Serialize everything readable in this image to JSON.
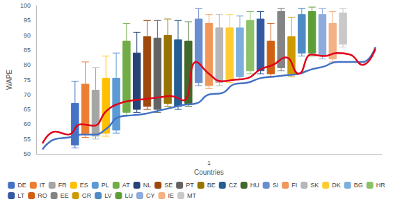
{
  "chart_data": {
    "type": "boxplot",
    "x_label": "Countries",
    "y_label": "WAPE",
    "categories": [
      "1"
    ],
    "ylim": [
      50,
      100
    ],
    "yticks": [
      50,
      55,
      60,
      65,
      70,
      75,
      80,
      85,
      90,
      95,
      100
    ],
    "grid": false,
    "legend": "bottom",
    "series": [
      {
        "name": "DE",
        "color": "#4472c4",
        "values": [
          [
            52,
            53,
            59,
            67,
            74.5
          ]
        ]
      },
      {
        "name": "IT",
        "color": "#ed7d31",
        "values": [
          [
            55.5,
            56.5,
            64,
            73.5,
            81
          ]
        ]
      },
      {
        "name": "FR",
        "color": "#a5a5a5",
        "values": [
          [
            55,
            56,
            63,
            71.5,
            79
          ]
        ]
      },
      {
        "name": "ES",
        "color": "#ffc000",
        "values": [
          [
            56,
            57,
            66,
            75.5,
            83
          ]
        ]
      },
      {
        "name": "PL",
        "color": "#5b9bd5",
        "values": [
          [
            57,
            58,
            66,
            75.5,
            84
          ]
        ]
      },
      {
        "name": "AT",
        "color": "#70ad47",
        "values": [
          [
            63,
            64,
            76,
            88,
            94
          ]
        ]
      },
      {
        "name": "NL",
        "color": "#264478",
        "values": [
          [
            64,
            65,
            74,
            84,
            91
          ]
        ]
      },
      {
        "name": "SE",
        "color": "#9e480e",
        "values": [
          [
            65,
            66,
            78,
            89.5,
            95
          ]
        ]
      },
      {
        "name": "PT",
        "color": "#636363",
        "values": [
          [
            64,
            65,
            77,
            89,
            95
          ]
        ]
      },
      {
        "name": "BE",
        "color": "#997300",
        "values": [
          [
            66,
            67,
            79,
            90,
            95.5
          ]
        ]
      },
      {
        "name": "CZ",
        "color": "#255e91",
        "values": [
          [
            65,
            66,
            78,
            88.5,
            95
          ]
        ]
      },
      {
        "name": "HU",
        "color": "#43682b",
        "values": [
          [
            66,
            67,
            78,
            88,
            94.5
          ]
        ]
      },
      {
        "name": "SI",
        "color": "#698ed0",
        "values": [
          [
            73,
            74,
            85,
            95.5,
            99
          ]
        ]
      },
      {
        "name": "FI",
        "color": "#f1975a",
        "values": [
          [
            72,
            73,
            84,
            94,
            97
          ]
        ]
      },
      {
        "name": "SK",
        "color": "#b7b7b7",
        "values": [
          [
            73,
            74,
            84,
            92.5,
            97
          ]
        ]
      },
      {
        "name": "DK",
        "color": "#ffcd33",
        "values": [
          [
            74,
            75,
            84,
            92.5,
            97
          ]
        ]
      },
      {
        "name": "BG",
        "color": "#7cafdd",
        "values": [
          [
            75,
            76,
            85,
            92.5,
            96.5
          ]
        ]
      },
      {
        "name": "HR",
        "color": "#8cc168",
        "values": [
          [
            77,
            78,
            87,
            95,
            98
          ]
        ]
      },
      {
        "name": "LT",
        "color": "#335aa1",
        "values": [
          [
            77,
            78,
            87,
            95.5,
            98
          ]
        ]
      },
      {
        "name": "RO",
        "color": "#d26012",
        "values": [
          [
            76,
            77,
            82,
            88,
            94
          ]
        ]
      },
      {
        "name": "EE",
        "color": "#848484",
        "values": [
          [
            78,
            79,
            89,
            98,
            99
          ]
        ]
      },
      {
        "name": "GR",
        "color": "#cc9a00",
        "values": [
          [
            76,
            77,
            83,
            89.5,
            96
          ]
        ]
      },
      {
        "name": "LV",
        "color": "#4e8ac5",
        "values": [
          [
            83,
            84,
            91,
            97,
            99
          ]
        ]
      },
      {
        "name": "LU",
        "color": "#5e9e39",
        "values": [
          [
            83,
            84,
            91,
            98,
            99.5
          ]
        ]
      },
      {
        "name": "CY",
        "color": "#8faadc",
        "values": [
          [
            82,
            83,
            90,
            97,
            99
          ]
        ]
      },
      {
        "name": "IE",
        "color": "#f4b183",
        "values": [
          [
            81,
            82,
            88,
            94,
            98
          ]
        ]
      },
      {
        "name": "MT",
        "color": "#c9c9c9",
        "values": [
          [
            86,
            87,
            93,
            97.5,
            99
          ]
        ]
      },
      {
        "type": "line",
        "color": "#4472c4",
        "x": [
          "DE",
          "IT",
          "FR",
          "ES",
          "PL",
          "AT",
          "NL",
          "SE",
          "PT",
          "BE",
          "CZ",
          "HU",
          "SI",
          "FI",
          "SK",
          "DK",
          "BG",
          "HR",
          "LT",
          "RO",
          "EE",
          "GR",
          "LV",
          "LU",
          "CY",
          "IE",
          "MT"
        ],
        "values": [
          51.5,
          55,
          55.5,
          56.5,
          56.5,
          58.5,
          62.5,
          63,
          63.5,
          64.5,
          65.5,
          66.5,
          67,
          70,
          70.5,
          73.5,
          74,
          75.5,
          76,
          76.5,
          77,
          78.5,
          79.5,
          81,
          81,
          81,
          86
        ]
      },
      {
        "type": "line",
        "color": "#e0001a",
        "x": [
          "DE",
          "IT",
          "FR",
          "ES",
          "PL",
          "AT",
          "NL",
          "SE",
          "PT",
          "BE",
          "CZ",
          "HU",
          "SI",
          "FI",
          "SK",
          "DK",
          "BG",
          "HR",
          "LT",
          "RO",
          "EE",
          "GR",
          "LV",
          "LU",
          "CY",
          "IE",
          "MT"
        ],
        "values": [
          53.5,
          57.5,
          56.5,
          60,
          59.5,
          64.5,
          67,
          68,
          68.5,
          69,
          69.5,
          68,
          81,
          77,
          74.5,
          75,
          75.5,
          78.5,
          80,
          82.5,
          77,
          83.5,
          83,
          84,
          83.5,
          80,
          85.5
        ]
      }
    ]
  }
}
